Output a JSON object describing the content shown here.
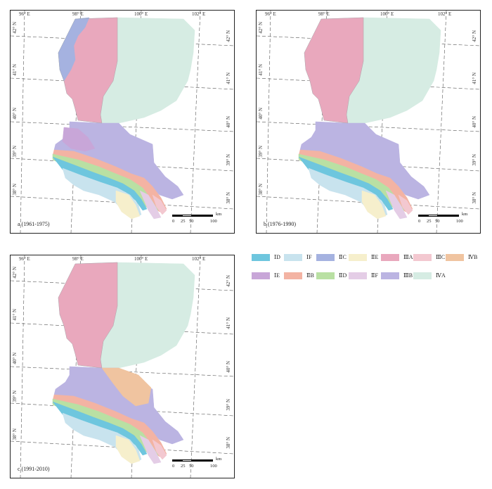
{
  "panels": [
    {
      "caption": "a (1961-1975)"
    },
    {
      "caption": "b (1976-1990)"
    },
    {
      "caption": "c (1991-2010)"
    }
  ],
  "coords": {
    "lon_labels": [
      "96° E",
      "98° E",
      "100° E",
      "102° E"
    ],
    "lat_labels": [
      "42° N",
      "41° N",
      "40° N",
      "39° N",
      "38° N"
    ]
  },
  "scalebar": {
    "ticks": [
      "0",
      "25",
      "50",
      "100"
    ],
    "unit": "km"
  },
  "legend": {
    "items": [
      {
        "label": "ⅠD",
        "color": "#6ec6de"
      },
      {
        "label": "ⅠF",
        "color": "#c8e3ee"
      },
      {
        "label": "ⅡC",
        "color": "#a5b2e0"
      },
      {
        "label": "ⅡE",
        "color": "#f6efcc"
      },
      {
        "label": "ⅢA",
        "color": "#e9a8bd"
      },
      {
        "label": "ⅢC",
        "color": "#f3c8d0"
      },
      {
        "label": "ⅣB",
        "color": "#f0c4a0"
      },
      {
        "label": "ⅠE",
        "color": "#c8a6d8"
      },
      {
        "label": "ⅡB",
        "color": "#f3b3a3"
      },
      {
        "label": "ⅡD",
        "color": "#b9e0a3"
      },
      {
        "label": "ⅡF",
        "color": "#e4cde6"
      },
      {
        "label": "ⅢB",
        "color": "#bbb4e2"
      },
      {
        "label": "ⅣA",
        "color": "#d6ece3"
      }
    ]
  }
}
